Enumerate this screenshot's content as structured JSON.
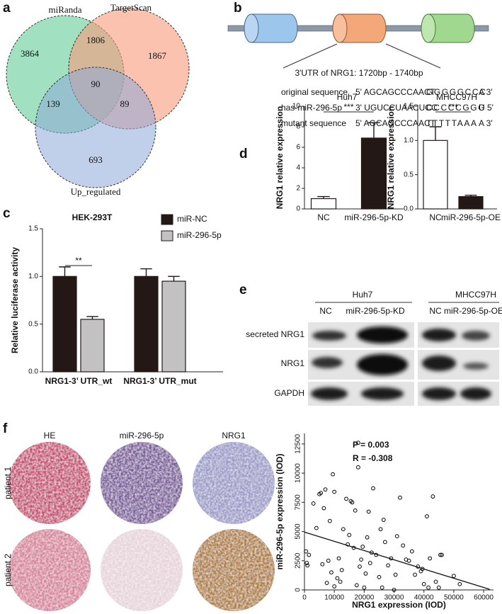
{
  "panel_labels": [
    "a",
    "b",
    "c",
    "d",
    "e",
    "f"
  ],
  "venn": {
    "sets": [
      "miRanda",
      "TargetScan",
      "Up_regulated"
    ],
    "regions": [
      3864,
      1806,
      1867,
      90,
      139,
      89,
      693
    ]
  },
  "gene_diagram": {
    "title": "3'UTR of NRG1: 1720bp - 1740bp",
    "rows": [
      {
        "name": "original sequence",
        "left": "5' AGCAGCCCAACT",
        "site": "GGGGGCCC",
        "right": "A 3'"
      },
      {
        "name": "has-miR-296-5p",
        "left": "3' UGUCCUAACUCC",
        "site": "CCCCCGGG",
        "right": "U 5'"
      },
      {
        "name": "mutant sequence",
        "left": "5' AGCAGCCCAACT",
        "site": "TTTTTAAA",
        "right": "A 3'"
      }
    ]
  },
  "chart_data": [
    {
      "type": "bar",
      "title": "HEK-293T",
      "categories": [
        "NRG1-3’ UTR_wt",
        "NRG1-3’ UTR_mut"
      ],
      "series": [
        {
          "name": "miR-NC",
          "color": "#231815",
          "values": [
            1.0,
            1.0
          ],
          "errors": [
            0.1,
            0.08
          ]
        },
        {
          "name": "miR-296-5p",
          "color": "#c2c2c2",
          "values": [
            0.55,
            0.95
          ],
          "errors": [
            0.03,
            0.05
          ]
        }
      ],
      "ylabel": "Relative luciferase activity",
      "ylim": [
        0,
        1.5
      ],
      "yticks": [
        {
          "value": 0,
          "label": "0.0"
        },
        0.5,
        {
          "value": 1,
          "label": "1.0"
        },
        1.5
      ],
      "significance": "**",
      "legend": "upper right"
    },
    {
      "type": "bar",
      "title": "Huh7",
      "categories": [
        "NC",
        "miR-296-5p-KD"
      ],
      "values": [
        1.0,
        6.9
      ],
      "errors": [
        0.2,
        1.5
      ],
      "colors": [
        "#ffffff",
        "#231815"
      ],
      "ylabel": "NRG1 relative expression",
      "ylim": [
        0,
        10
      ],
      "yticks": [
        0,
        2,
        4,
        6,
        8,
        10
      ],
      "significance": "***"
    },
    {
      "type": "bar",
      "title": "MHCC97H",
      "categories": [
        "NC",
        "miR-296-5p-OE"
      ],
      "values": [
        1.0,
        0.18
      ],
      "errors": [
        0.2,
        0.02
      ],
      "colors": [
        "#ffffff",
        "#231815"
      ],
      "ylabel": "NRG1 relative expression",
      "ylim": [
        0,
        1.5
      ],
      "yticks": [
        {
          "value": 0,
          "label": "0.0"
        },
        0.5,
        {
          "value": 1,
          "label": "1.0"
        },
        1.5
      ],
      "significance": "***"
    },
    {
      "type": "scatter",
      "xlabel": "NRG1 expression (IOD)",
      "ylabel": "miR-296-5p expression (IOD)",
      "x": [
        500,
        800,
        1000,
        1500,
        3000,
        4000,
        5000,
        5500,
        6000,
        6500,
        7000,
        7500,
        8000,
        8500,
        9000,
        9500,
        10000,
        10000,
        11000,
        11500,
        12000,
        12500,
        13000,
        14000,
        14500,
        15000,
        15500,
        16000,
        16500,
        17000,
        17500,
        18000,
        18000,
        18500,
        19000,
        19500,
        20000,
        20500,
        21000,
        21500,
        22000,
        22500,
        23000,
        24000,
        25000,
        25500,
        26000,
        26500,
        27000,
        28000,
        29000,
        30000,
        30500,
        31000,
        32000,
        33000,
        34000,
        35000,
        36000,
        37000,
        38000,
        39000,
        39500,
        40000,
        41000,
        41500,
        42000,
        43000,
        44000,
        45000,
        45500,
        46000,
        50000,
        52000
      ],
      "y": [
        3300,
        2300,
        2100,
        3000,
        7400,
        5300,
        8200,
        8300,
        2200,
        7000,
        8600,
        600,
        2500,
        5900,
        1500,
        9900,
        8400,
        300,
        1000,
        2700,
        700,
        1700,
        5200,
        7800,
        3900,
        4700,
        7600,
        7500,
        3600,
        6800,
        400,
        12600,
        10500,
        2000,
        2600,
        3700,
        200,
        1400,
        4500,
        6700,
        2300,
        3200,
        8700,
        3000,
        1100,
        5200,
        200,
        6000,
        4100,
        2100,
        2700,
        0,
        1300,
        4600,
        7900,
        3800,
        2600,
        2500,
        3300,
        1300,
        2000,
        1600,
        1800,
        500,
        6300,
        200,
        2700,
        8000,
        700,
        200,
        3000,
        3000,
        1200,
        500
      ],
      "color": "#000000",
      "xlim": [
        0,
        63300
      ],
      "ylim": [
        0,
        13400
      ],
      "xticks": [
        0,
        10000,
        20000,
        30000,
        40000,
        50000,
        60000
      ],
      "yticks": [
        0,
        2500,
        5000,
        7500,
        10000,
        12500
      ],
      "fit_line": {
        "x": [
          0,
          62000
        ],
        "y": [
          4950,
          50
        ]
      },
      "annotations": [
        "P = 0.003",
        "R = -0.308"
      ]
    }
  ],
  "blot": {
    "groups": [
      {
        "name": "Huh7",
        "lanes": [
          "NC",
          "miR-296-5p-KD"
        ]
      },
      {
        "name": "MHCC97H",
        "lanes": [
          "NC",
          "miR-296-5p-OE"
        ]
      }
    ],
    "rows": [
      "secreted NRG1",
      "NRG1",
      "GAPDH"
    ]
  },
  "tissue": {
    "columns": [
      "HE",
      "miR-296-5p",
      "NRG1"
    ],
    "rows": [
      "patient 1",
      "patient 2"
    ]
  }
}
